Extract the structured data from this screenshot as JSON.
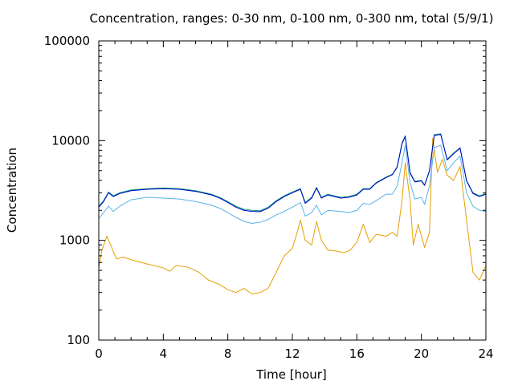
{
  "chart_data": {
    "type": "line",
    "title": "Concentration, ranges: 0-30 nm, 0-100 nm, 0-300 nm, total (5/9/1)",
    "xlabel": "Time [hour]",
    "ylabel": "Concentration",
    "xlim": [
      0,
      24
    ],
    "ylim": [
      100,
      100000
    ],
    "yscale": "log",
    "xticks": [
      0,
      4,
      8,
      12,
      16,
      20,
      24
    ],
    "yticks": [
      100,
      1000,
      10000,
      100000
    ],
    "xtick_labels": [
      "0",
      "4",
      "8",
      "12",
      "16",
      "20",
      "24"
    ],
    "ytick_labels": [
      "100",
      "1000",
      "10000",
      "100000"
    ],
    "grid": false,
    "legend": "none",
    "series": [
      {
        "color": "#e69f00",
        "points": [
          [
            0,
            530
          ],
          [
            0.2,
            800
          ],
          [
            0.5,
            1100
          ],
          [
            0.8,
            850
          ],
          [
            1.1,
            650
          ],
          [
            1.5,
            680
          ],
          [
            2,
            640
          ],
          [
            3,
            580
          ],
          [
            4,
            530
          ],
          [
            4.4,
            490
          ],
          [
            4.8,
            560
          ],
          [
            5.5,
            540
          ],
          [
            6.2,
            480
          ],
          [
            6.8,
            400
          ],
          [
            7.5,
            360
          ],
          [
            8,
            320
          ],
          [
            8.5,
            300
          ],
          [
            9,
            330
          ],
          [
            9.5,
            290
          ],
          [
            10,
            300
          ],
          [
            10.5,
            330
          ],
          [
            11,
            480
          ],
          [
            11.5,
            700
          ],
          [
            12,
            830
          ],
          [
            12.3,
            1200
          ],
          [
            12.5,
            1600
          ],
          [
            12.8,
            1000
          ],
          [
            13.2,
            900
          ],
          [
            13.5,
            1550
          ],
          [
            13.8,
            1000
          ],
          [
            14.2,
            800
          ],
          [
            14.8,
            780
          ],
          [
            15.2,
            750
          ],
          [
            15.6,
            800
          ],
          [
            16,
            960
          ],
          [
            16.4,
            1450
          ],
          [
            16.8,
            950
          ],
          [
            17.2,
            1150
          ],
          [
            17.8,
            1100
          ],
          [
            18.2,
            1200
          ],
          [
            18.5,
            1100
          ],
          [
            18.8,
            2500
          ],
          [
            19,
            6000
          ],
          [
            19.3,
            2500
          ],
          [
            19.5,
            900
          ],
          [
            19.8,
            1450
          ],
          [
            20.2,
            850
          ],
          [
            20.5,
            1200
          ],
          [
            20.7,
            10500
          ],
          [
            21,
            4800
          ],
          [
            21.3,
            6500
          ],
          [
            21.6,
            4500
          ],
          [
            22,
            4000
          ],
          [
            22.4,
            5500
          ],
          [
            22.8,
            1600
          ],
          [
            23.2,
            480
          ],
          [
            23.6,
            400
          ],
          [
            24,
            560
          ]
        ]
      },
      {
        "color": "#56b4e9",
        "points": [
          [
            0,
            1650
          ],
          [
            0.3,
            1900
          ],
          [
            0.6,
            2200
          ],
          [
            0.9,
            1950
          ],
          [
            1.3,
            2200
          ],
          [
            2,
            2550
          ],
          [
            3,
            2700
          ],
          [
            4,
            2650
          ],
          [
            5,
            2600
          ],
          [
            6,
            2450
          ],
          [
            7,
            2250
          ],
          [
            7.5,
            2100
          ],
          [
            8,
            1900
          ],
          [
            8.5,
            1700
          ],
          [
            9,
            1550
          ],
          [
            9.5,
            1480
          ],
          [
            10,
            1520
          ],
          [
            10.5,
            1620
          ],
          [
            11,
            1800
          ],
          [
            11.5,
            1950
          ],
          [
            12,
            2150
          ],
          [
            12.5,
            2400
          ],
          [
            12.8,
            1750
          ],
          [
            13.2,
            1900
          ],
          [
            13.5,
            2250
          ],
          [
            13.8,
            1800
          ],
          [
            14.2,
            2000
          ],
          [
            15,
            1950
          ],
          [
            15.5,
            1900
          ],
          [
            16,
            2000
          ],
          [
            16.4,
            2350
          ],
          [
            16.8,
            2300
          ],
          [
            17.2,
            2500
          ],
          [
            17.8,
            2900
          ],
          [
            18.2,
            2900
          ],
          [
            18.5,
            3500
          ],
          [
            18.8,
            6000
          ],
          [
            19,
            9000
          ],
          [
            19.3,
            3800
          ],
          [
            19.6,
            2600
          ],
          [
            20,
            2700
          ],
          [
            20.2,
            2300
          ],
          [
            20.5,
            3500
          ],
          [
            20.8,
            8500
          ],
          [
            21.2,
            9000
          ],
          [
            21.6,
            5000
          ],
          [
            22,
            6000
          ],
          [
            22.4,
            7000
          ],
          [
            22.8,
            3000
          ],
          [
            23.2,
            2200
          ],
          [
            23.6,
            2000
          ],
          [
            24,
            1950
          ]
        ]
      },
      {
        "color": "#009e73",
        "points": [
          [
            0,
            2200
          ],
          [
            0.3,
            2500
          ],
          [
            0.6,
            3050
          ],
          [
            0.9,
            2800
          ],
          [
            1.3,
            3000
          ],
          [
            2,
            3200
          ],
          [
            3,
            3300
          ],
          [
            4,
            3350
          ],
          [
            5,
            3300
          ],
          [
            6,
            3150
          ],
          [
            7,
            2900
          ],
          [
            7.5,
            2700
          ],
          [
            8,
            2450
          ],
          [
            8.5,
            2200
          ],
          [
            9,
            2050
          ],
          [
            9.5,
            2000
          ],
          [
            10,
            1980
          ],
          [
            10.5,
            2150
          ],
          [
            11,
            2500
          ],
          [
            11.5,
            2800
          ],
          [
            12,
            3050
          ],
          [
            12.5,
            3300
          ],
          [
            12.8,
            2400
          ],
          [
            13.2,
            2700
          ],
          [
            13.5,
            3400
          ],
          [
            13.8,
            2700
          ],
          [
            14.2,
            2900
          ],
          [
            15,
            2700
          ],
          [
            15.5,
            2750
          ],
          [
            16,
            2900
          ],
          [
            16.4,
            3300
          ],
          [
            16.8,
            3300
          ],
          [
            17.2,
            3800
          ],
          [
            17.8,
            4300
          ],
          [
            18.2,
            4600
          ],
          [
            18.5,
            5500
          ],
          [
            18.8,
            9500
          ],
          [
            19,
            11200
          ],
          [
            19.3,
            4800
          ],
          [
            19.6,
            3900
          ],
          [
            20,
            4000
          ],
          [
            20.2,
            3600
          ],
          [
            20.5,
            5000
          ],
          [
            20.8,
            11500
          ],
          [
            21.2,
            11700
          ],
          [
            21.6,
            6500
          ],
          [
            22,
            7500
          ],
          [
            22.4,
            8500
          ],
          [
            22.8,
            4000
          ],
          [
            23.2,
            3000
          ],
          [
            23.6,
            2800
          ],
          [
            24,
            2950
          ]
        ]
      },
      {
        "color": "#0000cc",
        "points": [
          [
            0,
            2150
          ],
          [
            0.3,
            2450
          ],
          [
            0.6,
            3000
          ],
          [
            0.9,
            2750
          ],
          [
            1.3,
            2950
          ],
          [
            2,
            3150
          ],
          [
            3,
            3250
          ],
          [
            4,
            3300
          ],
          [
            5,
            3250
          ],
          [
            6,
            3100
          ],
          [
            7,
            2850
          ],
          [
            7.5,
            2650
          ],
          [
            8,
            2400
          ],
          [
            8.5,
            2150
          ],
          [
            9,
            2000
          ],
          [
            9.5,
            1950
          ],
          [
            10,
            1940
          ],
          [
            10.5,
            2100
          ],
          [
            11,
            2450
          ],
          [
            11.5,
            2750
          ],
          [
            12,
            3000
          ],
          [
            12.5,
            3250
          ],
          [
            12.8,
            2350
          ],
          [
            13.2,
            2650
          ],
          [
            13.5,
            3350
          ],
          [
            13.8,
            2650
          ],
          [
            14.2,
            2850
          ],
          [
            15,
            2650
          ],
          [
            15.5,
            2700
          ],
          [
            16,
            2850
          ],
          [
            16.4,
            3250
          ],
          [
            16.8,
            3250
          ],
          [
            17.2,
            3750
          ],
          [
            17.8,
            4250
          ],
          [
            18.2,
            4550
          ],
          [
            18.5,
            5400
          ],
          [
            18.8,
            9300
          ],
          [
            19,
            11000
          ],
          [
            19.3,
            4700
          ],
          [
            19.6,
            3850
          ],
          [
            20,
            3950
          ],
          [
            20.2,
            3550
          ],
          [
            20.5,
            4950
          ],
          [
            20.8,
            11300
          ],
          [
            21.2,
            11500
          ],
          [
            21.6,
            6400
          ],
          [
            22,
            7400
          ],
          [
            22.4,
            8400
          ],
          [
            22.8,
            3950
          ],
          [
            23.2,
            2950
          ],
          [
            23.6,
            2750
          ],
          [
            24,
            2900
          ]
        ]
      }
    ]
  }
}
